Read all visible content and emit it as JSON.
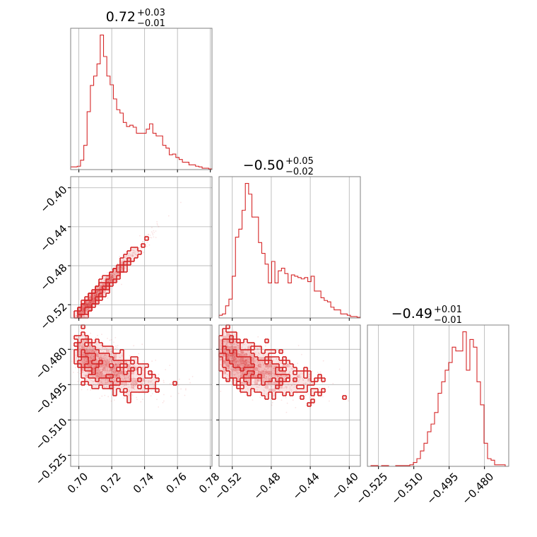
{
  "chart_data": {
    "type": "corner",
    "color": "#d62728",
    "grid": true,
    "parameters": [
      {
        "range": [
          0.695,
          0.781
        ],
        "ticks": [
          0.7,
          0.72,
          0.74,
          0.76,
          0.78
        ],
        "tick_labels": [
          "0.70",
          "0.72",
          "0.74",
          "0.76",
          "0.78"
        ]
      },
      {
        "range": [
          -0.5336,
          -0.3886
        ],
        "ticks": [
          -0.52,
          -0.48,
          -0.44,
          -0.4
        ],
        "tick_labels": [
          "−0.52",
          "−0.48",
          "−0.44",
          "−0.40"
        ]
      },
      {
        "range": [
          -0.5297,
          -0.4697
        ],
        "ticks": [
          -0.525,
          -0.51,
          -0.495,
          -0.48
        ],
        "tick_labels": [
          "−0.525",
          "−0.510",
          "−0.495",
          "−0.480"
        ]
      }
    ],
    "titles": [
      {
        "median": "0.72",
        "plus": "+0.03",
        "minus": "−0.01"
      },
      {
        "median": "−0.50",
        "plus": "+0.05",
        "minus": "−0.02"
      },
      {
        "median": "−0.49",
        "plus": "+0.01",
        "minus": "−0.01"
      }
    ],
    "hist": [
      {
        "x": [
          0.695,
          0.697,
          0.699,
          0.701,
          0.703,
          0.705,
          0.707,
          0.709,
          0.711,
          0.713,
          0.715,
          0.717,
          0.719,
          0.721,
          0.723,
          0.725,
          0.727,
          0.729,
          0.731,
          0.733,
          0.735,
          0.737,
          0.739,
          0.741,
          0.743,
          0.745,
          0.747,
          0.749,
          0.751,
          0.753,
          0.755,
          0.757,
          0.759,
          0.761,
          0.763,
          0.765,
          0.767,
          0.769,
          0.771,
          0.773,
          0.775,
          0.777,
          0.779
        ],
        "counts": [
          4,
          4,
          5,
          14,
          36,
          86,
          125,
          139,
          157,
          200,
          168,
          139,
          126,
          105,
          89,
          84,
          70,
          64,
          66,
          63,
          54,
          54,
          54,
          60,
          68,
          54,
          50,
          50,
          36,
          32,
          22,
          23,
          18,
          15,
          11,
          11,
          7,
          7,
          5,
          4,
          2,
          2,
          1
        ]
      },
      {
        "x": [
          -0.5336,
          -0.5302,
          -0.5268,
          -0.5234,
          -0.52,
          -0.5166,
          -0.5132,
          -0.5098,
          -0.5064,
          -0.503,
          -0.4996,
          -0.4962,
          -0.4928,
          -0.4894,
          -0.486,
          -0.4826,
          -0.4792,
          -0.4758,
          -0.4724,
          -0.469,
          -0.4656,
          -0.4622,
          -0.4588,
          -0.4554,
          -0.452,
          -0.4486,
          -0.4452,
          -0.4418,
          -0.4384,
          -0.435,
          -0.4316,
          -0.4282,
          -0.4248,
          -0.4214,
          -0.418,
          -0.4146,
          -0.4112,
          -0.4078,
          -0.4044,
          -0.401,
          -0.3976,
          -0.3942,
          -0.3908
        ],
        "counts": [
          4,
          6,
          18,
          28,
          62,
          120,
          132,
          160,
          200,
          184,
          150,
          150,
          112,
          96,
          80,
          52,
          84,
          52,
          70,
          74,
          66,
          52,
          64,
          62,
          60,
          58,
          60,
          54,
          62,
          40,
          40,
          30,
          26,
          24,
          16,
          12,
          12,
          6,
          6,
          4,
          2,
          2,
          1
        ]
      },
      {
        "x": [
          -0.5297,
          -0.5282,
          -0.5267,
          -0.5252,
          -0.5237,
          -0.5222,
          -0.5207,
          -0.5192,
          -0.5177,
          -0.5162,
          -0.5147,
          -0.5132,
          -0.5117,
          -0.5102,
          -0.5087,
          -0.5072,
          -0.5057,
          -0.5042,
          -0.5027,
          -0.5012,
          -0.4997,
          -0.4982,
          -0.4967,
          -0.4952,
          -0.4937,
          -0.4922,
          -0.4907,
          -0.4892,
          -0.4877,
          -0.4862,
          -0.4847,
          -0.4832,
          -0.4817,
          -0.4802,
          -0.4787,
          -0.4772,
          -0.4757,
          -0.4742,
          -0.4727,
          -0.4712
        ],
        "counts": [
          0,
          1,
          1,
          0,
          1,
          1,
          0,
          0,
          1,
          1,
          1,
          1,
          2,
          5,
          10,
          20,
          30,
          45,
          55,
          70,
          95,
          110,
          125,
          135,
          155,
          150,
          150,
          175,
          125,
          165,
          155,
          110,
          80,
          30,
          10,
          8,
          2,
          2,
          2,
          0
        ]
      }
    ],
    "pairs": [
      {
        "x_param": 0,
        "y_param": 1,
        "relation": "linear",
        "line": {
          "x": [
            0.7,
            0.76
          ],
          "y": [
            -0.53,
            -0.42
          ]
        }
      },
      {
        "x_param": 0,
        "y_param": 2,
        "relation": "negative-curved",
        "core": {
          "x": [
            0.7,
            0.76
          ],
          "y": [
            -0.479,
            -0.496
          ]
        }
      },
      {
        "x_param": 1,
        "y_param": 2,
        "relation": "negative-curved",
        "core": {
          "x": [
            -0.53,
            -0.42
          ],
          "y": [
            -0.479,
            -0.496
          ]
        }
      }
    ]
  }
}
